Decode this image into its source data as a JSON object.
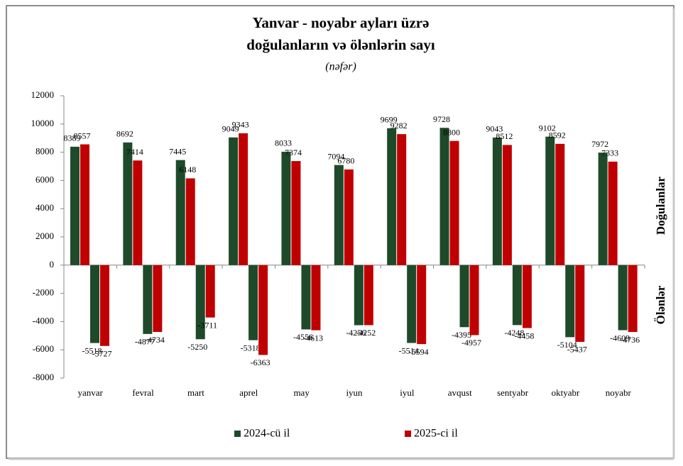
{
  "chart_data": {
    "type": "bar",
    "title": [
      "Yanvar - noyabr ayları üzrə",
      "doğulanların və ölənlərin sayı"
    ],
    "subtitle": "(nəfər)",
    "side_labels": {
      "positive": "Doğulanlar",
      "negative": "Ölənlər"
    },
    "categories": [
      "yanvar",
      "fevral",
      "mart",
      "aprel",
      "may",
      "iyun",
      "iyul",
      "avqust",
      "sentyabr",
      "oktyabr",
      "noyabr"
    ],
    "series": [
      {
        "name": "2024-cü il",
        "color": "#1f4a2a",
        "births": [
          8389,
          8692,
          7445,
          9049,
          8033,
          7094,
          9699,
          9728,
          9043,
          9102,
          7972
        ],
        "deaths": [
          -5518,
          -4877,
          -5250,
          -5318,
          -4556,
          -4256,
          -5514,
          -4395,
          -4248,
          -5104,
          -4609
        ]
      },
      {
        "name": "2025-ci il",
        "color": "#c00000",
        "births": [
          8557,
          7414,
          6148,
          9343,
          7374,
          6780,
          9282,
          8800,
          8512,
          8592,
          7333
        ],
        "deaths": [
          -5727,
          -4734,
          -3711,
          -6363,
          -4613,
          -4252,
          -5594,
          -4957,
          -4458,
          -5437,
          -4736
        ]
      }
    ],
    "ylim": [
      -8000,
      12000
    ],
    "yticks": [
      -8000,
      -6000,
      -4000,
      -2000,
      0,
      2000,
      4000,
      6000,
      8000,
      10000,
      12000
    ]
  }
}
